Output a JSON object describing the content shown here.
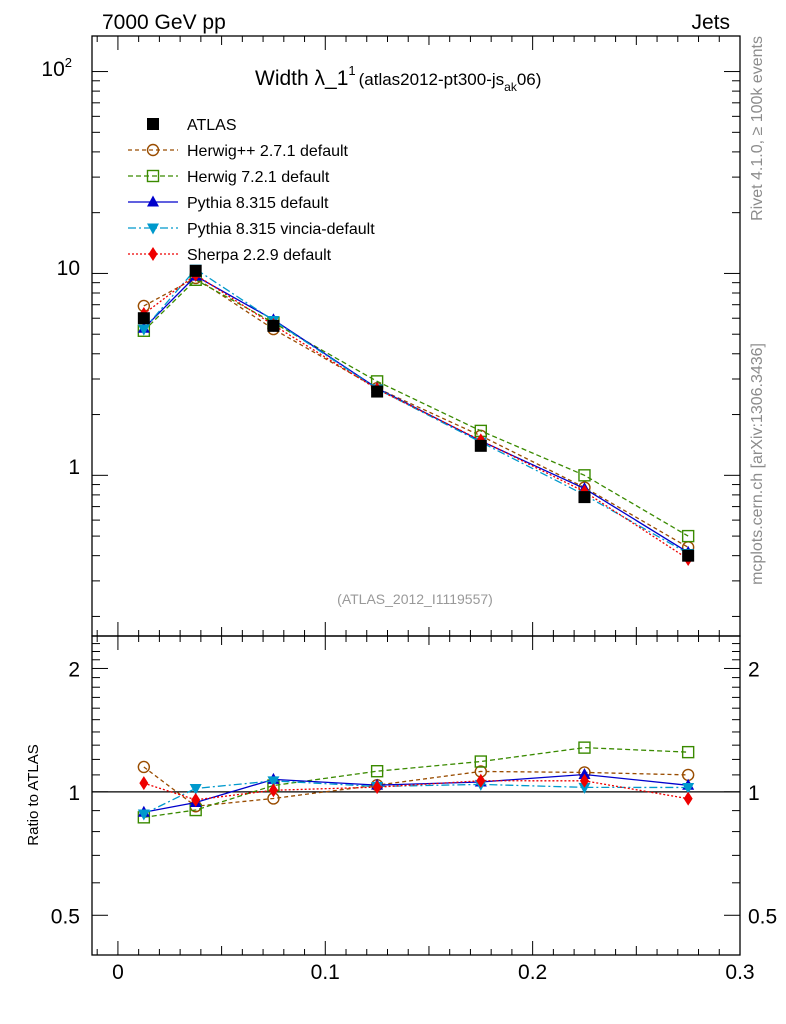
{
  "header": {
    "left": "7000 GeV pp",
    "right": "Jets"
  },
  "side_labels": {
    "rivet": "Rivet 4.1.0, ≥ 100k events",
    "mcplots": "mcplots.cern.ch [arXiv:1306.3436]"
  },
  "chart_data": {
    "type": "line",
    "title": {
      "prefix": "Width λ_1",
      "sup": "1",
      "paren_open": "(atlas2012-pt300-js",
      "sub": "ak",
      "paren_close": "06)"
    },
    "watermark": "(ATLAS_2012_I1119557)",
    "x": [
      0.0125,
      0.0375,
      0.075,
      0.125,
      0.175,
      0.225,
      0.275
    ],
    "xlim": [
      -0.0125,
      0.3
    ],
    "xticks": [
      0,
      0.1,
      0.2,
      0.3
    ],
    "xtick_labels": [
      "0",
      "0.1",
      "0.2",
      "0.3"
    ],
    "main": {
      "yscale": "log",
      "ylim": [
        0.16,
        150
      ],
      "yticks": [
        1,
        10,
        100
      ],
      "ytick_labels": {
        "one": "1",
        "ten": "10",
        "hundred_base": "10",
        "hundred_exp": "2"
      }
    },
    "ratio": {
      "ylabel": "Ratio to ATLAS",
      "yscale": "log",
      "ylim": [
        0.4,
        2.4
      ],
      "yticks": [
        0.5,
        1,
        2
      ],
      "ytick_labels": [
        "0.5",
        "1",
        "2"
      ]
    },
    "reference": "ATLAS",
    "series": [
      {
        "name": "ATLAS",
        "color": "#000000",
        "marker": "square-filled",
        "dash": "none",
        "values": [
          6.0,
          10.3,
          5.5,
          2.6,
          1.4,
          0.78,
          0.4
        ]
      },
      {
        "name": "Herwig++ 2.7.1 default",
        "color": "#994C00",
        "marker": "circle-open",
        "dash": "4,3",
        "values": [
          6.9,
          9.5,
          5.3,
          2.7,
          1.57,
          0.87,
          0.44
        ]
      },
      {
        "name": "Herwig 7.2.1 default",
        "color": "#3A8A00",
        "marker": "square-open",
        "dash": "5,3",
        "values": [
          5.2,
          9.3,
          5.7,
          2.92,
          1.66,
          1.0,
          0.5
        ]
      },
      {
        "name": "Pythia 8.315 default",
        "color": "#0000CC",
        "marker": "triangle-up",
        "dash": "none",
        "values": [
          5.35,
          9.7,
          5.9,
          2.7,
          1.48,
          0.86,
          0.415
        ]
      },
      {
        "name": "Pythia 8.315 vincia-default",
        "color": "#0099CC",
        "marker": "triangle-down",
        "dash": "8,3,2,3",
        "values": [
          5.3,
          10.5,
          5.85,
          2.68,
          1.46,
          0.8,
          0.41
        ]
      },
      {
        "name": "Sherpa 2.2.9 default",
        "color": "#EE0000",
        "marker": "diamond",
        "dash": "2,2",
        "values": [
          6.3,
          9.85,
          5.55,
          2.67,
          1.49,
          0.83,
          0.385
        ]
      }
    ]
  }
}
